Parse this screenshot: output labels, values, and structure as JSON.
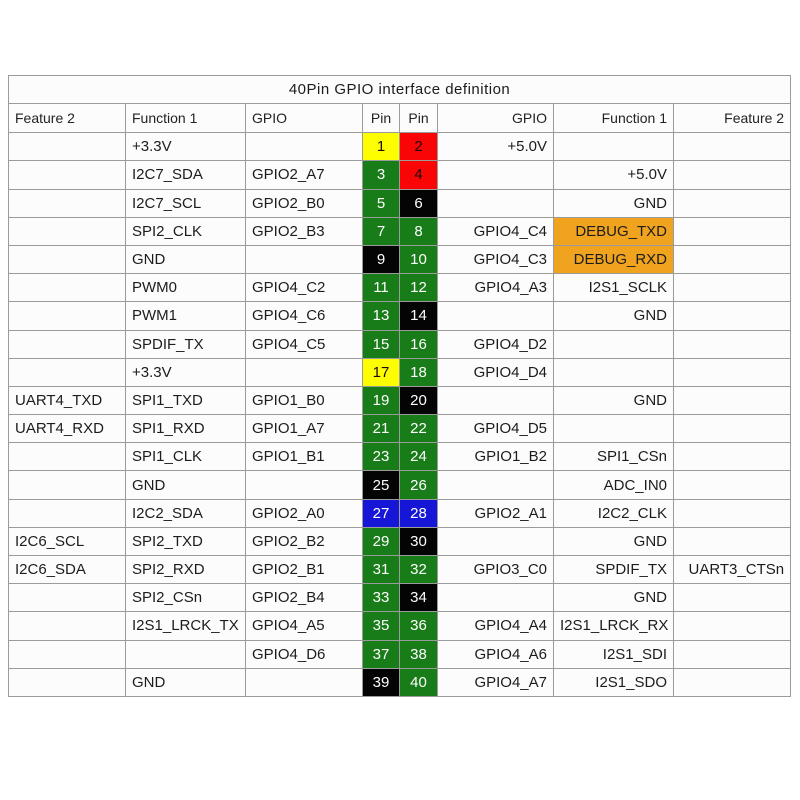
{
  "title": "40Pin GPIO interface definition",
  "header": {
    "feature2_left": "Feature 2",
    "function1_left": "Function 1",
    "gpio_left": "GPIO",
    "pin_left": "Pin",
    "pin_right": "Pin",
    "gpio_right": "GPIO",
    "function1_right": "Function 1",
    "feature2_right": "Feature 2"
  },
  "colors": {
    "green": "#187c18",
    "red": "#fa0505",
    "yellow": "#fdfe00",
    "black": "#040404",
    "blue": "#1616d6",
    "orange": "#f0a31f",
    "pin_text_light": "#ffffff",
    "pin_text_dark": "#1a0a0a"
  },
  "rows": [
    {
      "l_feature": "",
      "l_func": "+3.3V",
      "l_gpio": "",
      "l_pin": "1",
      "l_pin_color": "yellow",
      "r_pin": "2",
      "r_pin_color": "red",
      "r_gpio": "+5.0V",
      "r_func": "",
      "r_func_bg": "",
      "r_feature": ""
    },
    {
      "l_feature": "",
      "l_func": "I2C7_SDA",
      "l_gpio": "GPIO2_A7",
      "l_pin": "3",
      "l_pin_color": "green",
      "r_pin": "4",
      "r_pin_color": "red",
      "r_gpio": "",
      "r_func": "+5.0V",
      "r_func_bg": "",
      "r_feature": ""
    },
    {
      "l_feature": "",
      "l_func": "I2C7_SCL",
      "l_gpio": "GPIO2_B0",
      "l_pin": "5",
      "l_pin_color": "green",
      "r_pin": "6",
      "r_pin_color": "black",
      "r_gpio": "",
      "r_func": "GND",
      "r_func_bg": "",
      "r_feature": ""
    },
    {
      "l_feature": "",
      "l_func": "SPI2_CLK",
      "l_gpio": "GPIO2_B3",
      "l_pin": "7",
      "l_pin_color": "green",
      "r_pin": "8",
      "r_pin_color": "green",
      "r_gpio": "GPIO4_C4",
      "r_func": "DEBUG_TXD",
      "r_func_bg": "orange",
      "r_feature": ""
    },
    {
      "l_feature": "",
      "l_func": "GND",
      "l_gpio": "",
      "l_pin": "9",
      "l_pin_color": "black",
      "r_pin": "10",
      "r_pin_color": "green",
      "r_gpio": "GPIO4_C3",
      "r_func": "DEBUG_RXD",
      "r_func_bg": "orange",
      "r_feature": ""
    },
    {
      "l_feature": "",
      "l_func": "PWM0",
      "l_gpio": "GPIO4_C2",
      "l_pin": "11",
      "l_pin_color": "green",
      "r_pin": "12",
      "r_pin_color": "green",
      "r_gpio": "GPIO4_A3",
      "r_func": "I2S1_SCLK",
      "r_func_bg": "",
      "r_feature": ""
    },
    {
      "l_feature": "",
      "l_func": "PWM1",
      "l_gpio": "GPIO4_C6",
      "l_pin": "13",
      "l_pin_color": "green",
      "r_pin": "14",
      "r_pin_color": "black",
      "r_gpio": "",
      "r_func": "GND",
      "r_func_bg": "",
      "r_feature": ""
    },
    {
      "l_feature": "",
      "l_func": "SPDIF_TX",
      "l_gpio": "GPIO4_C5",
      "l_pin": "15",
      "l_pin_color": "green",
      "r_pin": "16",
      "r_pin_color": "green",
      "r_gpio": "GPIO4_D2",
      "r_func": "",
      "r_func_bg": "",
      "r_feature": ""
    },
    {
      "l_feature": "",
      "l_func": "+3.3V",
      "l_gpio": "",
      "l_pin": "17",
      "l_pin_color": "yellow",
      "r_pin": "18",
      "r_pin_color": "green",
      "r_gpio": "GPIO4_D4",
      "r_func": "",
      "r_func_bg": "",
      "r_feature": ""
    },
    {
      "l_feature": "UART4_TXD",
      "l_func": "SPI1_TXD",
      "l_gpio": "GPIO1_B0",
      "l_pin": "19",
      "l_pin_color": "green",
      "r_pin": "20",
      "r_pin_color": "black",
      "r_gpio": "",
      "r_func": "GND",
      "r_func_bg": "",
      "r_feature": ""
    },
    {
      "l_feature": "UART4_RXD",
      "l_func": "SPI1_RXD",
      "l_gpio": "GPIO1_A7",
      "l_pin": "21",
      "l_pin_color": "green",
      "r_pin": "22",
      "r_pin_color": "green",
      "r_gpio": "GPIO4_D5",
      "r_func": "",
      "r_func_bg": "",
      "r_feature": ""
    },
    {
      "l_feature": "",
      "l_func": "SPI1_CLK",
      "l_gpio": "GPIO1_B1",
      "l_pin": "23",
      "l_pin_color": "green",
      "r_pin": "24",
      "r_pin_color": "green",
      "r_gpio": "GPIO1_B2",
      "r_func": "SPI1_CSn",
      "r_func_bg": "",
      "r_feature": ""
    },
    {
      "l_feature": "",
      "l_func": "GND",
      "l_gpio": "",
      "l_pin": "25",
      "l_pin_color": "black",
      "r_pin": "26",
      "r_pin_color": "green",
      "r_gpio": "",
      "r_func": "ADC_IN0",
      "r_func_bg": "",
      "r_feature": ""
    },
    {
      "l_feature": "",
      "l_func": "I2C2_SDA",
      "l_gpio": "GPIO2_A0",
      "l_pin": "27",
      "l_pin_color": "blue",
      "r_pin": "28",
      "r_pin_color": "blue",
      "r_gpio": "GPIO2_A1",
      "r_func": "I2C2_CLK",
      "r_func_bg": "",
      "r_feature": ""
    },
    {
      "l_feature": "I2C6_SCL",
      "l_func": "SPI2_TXD",
      "l_gpio": "GPIO2_B2",
      "l_pin": "29",
      "l_pin_color": "green",
      "r_pin": "30",
      "r_pin_color": "black",
      "r_gpio": "",
      "r_func": "GND",
      "r_func_bg": "",
      "r_feature": ""
    },
    {
      "l_feature": "I2C6_SDA",
      "l_func": "SPI2_RXD",
      "l_gpio": "GPIO2_B1",
      "l_pin": "31",
      "l_pin_color": "green",
      "r_pin": "32",
      "r_pin_color": "green",
      "r_gpio": "GPIO3_C0",
      "r_func": "SPDIF_TX",
      "r_func_bg": "",
      "r_feature": "UART3_CTSn"
    },
    {
      "l_feature": "",
      "l_func": "SPI2_CSn",
      "l_gpio": "GPIO2_B4",
      "l_pin": "33",
      "l_pin_color": "green",
      "r_pin": "34",
      "r_pin_color": "black",
      "r_gpio": "",
      "r_func": "GND",
      "r_func_bg": "",
      "r_feature": ""
    },
    {
      "l_feature": "",
      "l_func": "I2S1_LRCK_TX",
      "l_gpio": "GPIO4_A5",
      "l_pin": "35",
      "l_pin_color": "green",
      "r_pin": "36",
      "r_pin_color": "green",
      "r_gpio": "GPIO4_A4",
      "r_func": "I2S1_LRCK_RX",
      "r_func_bg": "",
      "r_feature": ""
    },
    {
      "l_feature": "",
      "l_func": "",
      "l_gpio": "GPIO4_D6",
      "l_pin": "37",
      "l_pin_color": "green",
      "r_pin": "38",
      "r_pin_color": "green",
      "r_gpio": "GPIO4_A6",
      "r_func": "I2S1_SDI",
      "r_func_bg": "",
      "r_feature": ""
    },
    {
      "l_feature": "",
      "l_func": "GND",
      "l_gpio": "",
      "l_pin": "39",
      "l_pin_color": "black",
      "r_pin": "40",
      "r_pin_color": "green",
      "r_gpio": "GPIO4_A7",
      "r_func": "I2S1_SDO",
      "r_func_bg": "",
      "r_feature": ""
    }
  ]
}
